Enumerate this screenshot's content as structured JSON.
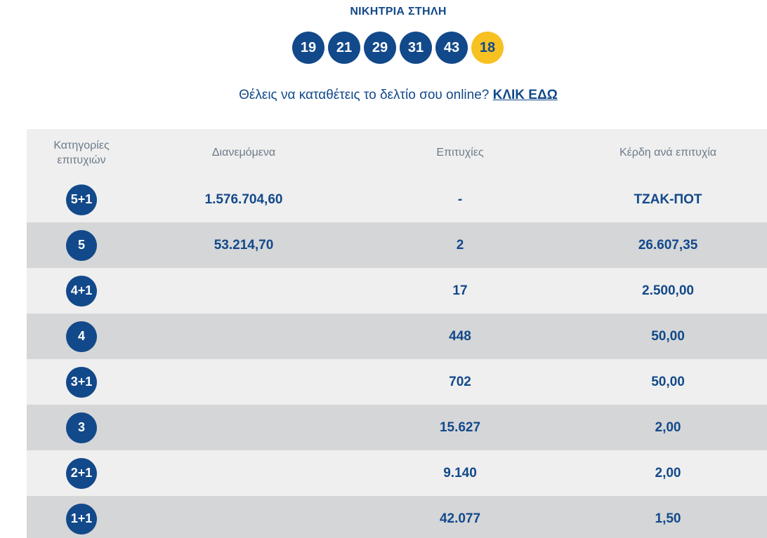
{
  "header": {
    "title": "ΝΙΚΗΤΡΙΑ ΣΤΗΛΗ",
    "numbers": [
      "19",
      "21",
      "29",
      "31",
      "43"
    ],
    "bonus": "18"
  },
  "cta": {
    "text": "Θέλεις να καταθέτεις το δελτίο σου online?",
    "link": "ΚΛΙΚ ΕΔΩ"
  },
  "table": {
    "headers": {
      "category_line1": "Κατηγορίες",
      "category_line2": "επιτυχιών",
      "distributed": "Διανεμόμενα",
      "winners": "Επιτυχίες",
      "prize": "Κέρδη ανά επιτυχία"
    },
    "rows": [
      {
        "category": "5+1",
        "distributed": "1.576.704,60",
        "winners": "-",
        "prize": "ΤΖΑΚ-ΠΟΤ"
      },
      {
        "category": "5",
        "distributed": "53.214,70",
        "winners": "2",
        "prize": "26.607,35"
      },
      {
        "category": "4+1",
        "distributed": "",
        "winners": "17",
        "prize": "2.500,00"
      },
      {
        "category": "4",
        "distributed": "",
        "winners": "448",
        "prize": "50,00"
      },
      {
        "category": "3+1",
        "distributed": "",
        "winners": "702",
        "prize": "50,00"
      },
      {
        "category": "3",
        "distributed": "",
        "winners": "15.627",
        "prize": "2,00"
      },
      {
        "category": "2+1",
        "distributed": "",
        "winners": "9.140",
        "prize": "2,00"
      },
      {
        "category": "1+1",
        "distributed": "",
        "winners": "42.077",
        "prize": "1,50"
      }
    ]
  },
  "colors": {
    "brand_blue": "#12498a",
    "bonus_yellow": "#f7c122",
    "row_light": "#efefef",
    "row_dark": "#d5d6d8"
  }
}
